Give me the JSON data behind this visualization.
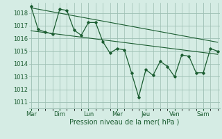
{
  "xlabel": "Pression niveau de la mer( hPa )",
  "bg_color": "#d5ece4",
  "grid_color": "#9dbfb3",
  "line_color": "#1a5c30",
  "ylim": [
    1010.5,
    1018.8
  ],
  "yticks": [
    1011,
    1012,
    1013,
    1014,
    1015,
    1016,
    1017,
    1018
  ],
  "day_labels": [
    "Mar",
    "Dim",
    "Lun",
    "Mer",
    "Jeu",
    "Ven",
    "Sam"
  ],
  "day_positions": [
    0,
    4,
    8,
    12,
    16,
    20,
    24
  ],
  "xlim": [
    -0.3,
    26.3
  ],
  "main_series_x": [
    0,
    1,
    2,
    3,
    4,
    5,
    6,
    7,
    8,
    9,
    10,
    11,
    12,
    13,
    14,
    15,
    16,
    17,
    18,
    19,
    20,
    21,
    22,
    23,
    24,
    25,
    26
  ],
  "main_series_y": [
    1018.5,
    1016.7,
    1016.5,
    1016.35,
    1018.3,
    1018.2,
    1016.65,
    1016.25,
    1017.25,
    1017.25,
    1015.75,
    1014.85,
    1015.2,
    1015.1,
    1013.3,
    1011.4,
    1013.55,
    1013.1,
    1014.2,
    1013.8,
    1013.0,
    1014.7,
    1014.6,
    1013.3,
    1013.3,
    1015.2,
    1015.0
  ],
  "upper_trend_x": [
    0,
    26
  ],
  "upper_trend_y": [
    1018.4,
    1015.7
  ],
  "lower_trend_x": [
    0,
    26
  ],
  "lower_trend_y": [
    1016.6,
    1014.75
  ]
}
